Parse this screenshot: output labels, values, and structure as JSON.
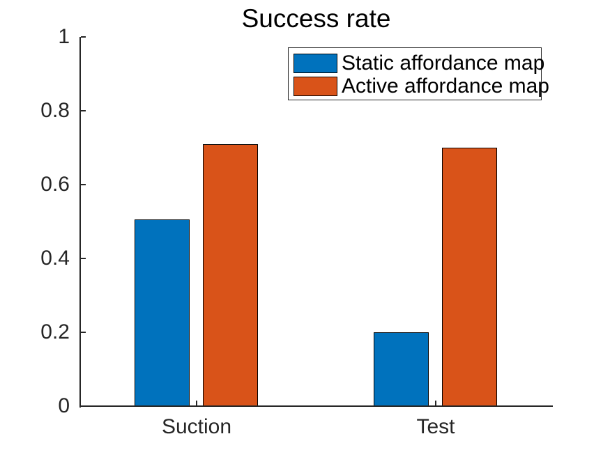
{
  "chart_data": {
    "type": "bar",
    "title": "Success rate",
    "categories": [
      "Suction",
      "Test"
    ],
    "series": [
      {
        "name": "Static affordance map",
        "color": "#0072BD",
        "values": [
          0.505,
          0.2
        ]
      },
      {
        "name": "Active affordance map",
        "color": "#D95319",
        "values": [
          0.71,
          0.7
        ]
      }
    ],
    "xlabel": "",
    "ylabel": "",
    "ylim": [
      0,
      1
    ],
    "yticks": [
      0,
      0.2,
      0.4,
      0.6,
      0.8,
      1
    ],
    "ytick_labels": [
      "0",
      "0.2",
      "0.4",
      "0.6",
      "0.8",
      "1"
    ],
    "grid": false,
    "legend_position": "top-right-inside",
    "bar_edge_color": "#000000",
    "axis_color": "#262626",
    "background_color": "#ffffff"
  }
}
